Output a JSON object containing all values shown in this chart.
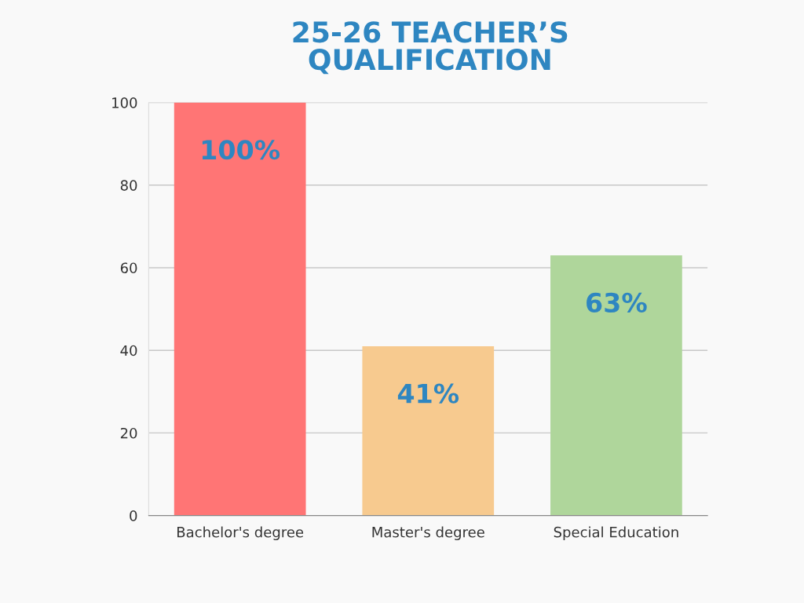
{
  "chart_data": {
    "type": "bar",
    "title": "25-26 TEACHER’S\nQUALIFICATION",
    "categories": [
      "Bachelor's degree",
      "Master's degree",
      "Special Education"
    ],
    "values": [
      100,
      41,
      63
    ],
    "colors": [
      "#ff7575",
      "#f7ca8f",
      "#afd69b"
    ],
    "value_labels": [
      "100%",
      "41%",
      "63%"
    ],
    "ylim": [
      0,
      100
    ],
    "yticks": [
      0,
      20,
      40,
      60,
      80,
      100
    ],
    "grid": "y",
    "legend": false
  }
}
